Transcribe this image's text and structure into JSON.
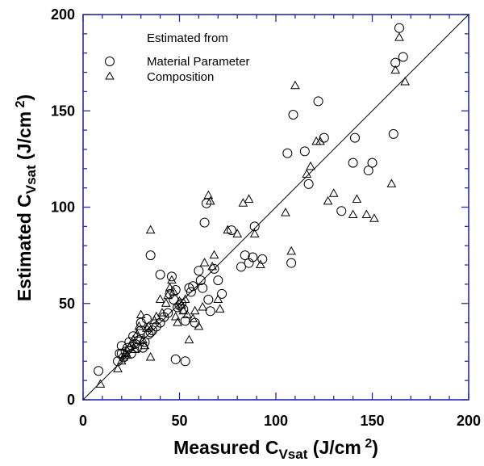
{
  "chart_data": {
    "type": "scatter",
    "xlabel": {
      "main": "Measured  C",
      "sub": "Vsat",
      "unit": "  (J/cm",
      "sup": " 2",
      "close": ")"
    },
    "ylabel": {
      "main": "Estimated  C",
      "sub": "Vsat",
      "unit": "  (J/cm",
      "sup": " 2",
      "close": ")"
    },
    "xlim": [
      0,
      200
    ],
    "ylim": [
      0,
      200
    ],
    "x_ticks": [
      "0",
      "50",
      "100",
      "150",
      "200"
    ],
    "y_ticks": [
      "0",
      "50",
      "100",
      "150",
      "200"
    ],
    "grid": false,
    "reference_line": {
      "from": [
        0,
        0
      ],
      "to": [
        200,
        200
      ]
    },
    "legend": {
      "placement": "top-left",
      "title": "Estimated from",
      "entries": [
        "Material Parameter",
        "Composition"
      ]
    },
    "series": [
      {
        "name": "Material Parameter",
        "marker": "circle",
        "points": [
          [
            8,
            15
          ],
          [
            18,
            20
          ],
          [
            19,
            24
          ],
          [
            20,
            24
          ],
          [
            20,
            28
          ],
          [
            21,
            22
          ],
          [
            22,
            25
          ],
          [
            23,
            27
          ],
          [
            24,
            30
          ],
          [
            25,
            24
          ],
          [
            26,
            33
          ],
          [
            27,
            29
          ],
          [
            28,
            27
          ],
          [
            29,
            31
          ],
          [
            30,
            36
          ],
          [
            30,
            40
          ],
          [
            31,
            27
          ],
          [
            32,
            30
          ],
          [
            33,
            42
          ],
          [
            34,
            34
          ],
          [
            35,
            35
          ],
          [
            36,
            36
          ],
          [
            38,
            38
          ],
          [
            40,
            40
          ],
          [
            40,
            65
          ],
          [
            42,
            43
          ],
          [
            44,
            45
          ],
          [
            45,
            55
          ],
          [
            46,
            64
          ],
          [
            47,
            52
          ],
          [
            48,
            57
          ],
          [
            49,
            48
          ],
          [
            50,
            49
          ],
          [
            51,
            50
          ],
          [
            52,
            47
          ],
          [
            53,
            41
          ],
          [
            55,
            58
          ],
          [
            56,
            56
          ],
          [
            57,
            59
          ],
          [
            58,
            40
          ],
          [
            60,
            67
          ],
          [
            61,
            62
          ],
          [
            62,
            58
          ],
          [
            63,
            92
          ],
          [
            64,
            102
          ],
          [
            65,
            52
          ],
          [
            66,
            46
          ],
          [
            68,
            68
          ],
          [
            70,
            62
          ],
          [
            72,
            55
          ],
          [
            77,
            88
          ],
          [
            82,
            69
          ],
          [
            84,
            75
          ],
          [
            86,
            71
          ],
          [
            88,
            74
          ],
          [
            89,
            90
          ],
          [
            93,
            73
          ],
          [
            108,
            71
          ],
          [
            106,
            128
          ],
          [
            109,
            148
          ],
          [
            115,
            129
          ],
          [
            117,
            112
          ],
          [
            122,
            155
          ],
          [
            125,
            136
          ],
          [
            134,
            98
          ],
          [
            140,
            123
          ],
          [
            141,
            136
          ],
          [
            148,
            119
          ],
          [
            150,
            123
          ],
          [
            161,
            138
          ],
          [
            162,
            175
          ],
          [
            164,
            193
          ],
          [
            166,
            178
          ],
          [
            35,
            75
          ],
          [
            48,
            21
          ],
          [
            53,
            20
          ]
        ]
      },
      {
        "name": "Composition",
        "marker": "triangle",
        "points": [
          [
            9,
            8
          ],
          [
            18,
            16
          ],
          [
            20,
            20
          ],
          [
            21,
            22
          ],
          [
            22,
            24
          ],
          [
            23,
            23
          ],
          [
            24,
            27
          ],
          [
            25,
            29
          ],
          [
            26,
            31
          ],
          [
            27,
            26
          ],
          [
            28,
            34
          ],
          [
            29,
            38
          ],
          [
            30,
            44
          ],
          [
            31,
            31
          ],
          [
            32,
            28
          ],
          [
            33,
            37
          ],
          [
            34,
            38
          ],
          [
            35,
            22
          ],
          [
            35,
            88
          ],
          [
            37,
            41
          ],
          [
            38,
            43
          ],
          [
            40,
            52
          ],
          [
            41,
            45
          ],
          [
            43,
            50
          ],
          [
            44,
            54
          ],
          [
            45,
            58
          ],
          [
            46,
            62
          ],
          [
            47,
            56
          ],
          [
            48,
            43
          ],
          [
            49,
            40
          ],
          [
            50,
            51
          ],
          [
            51,
            49
          ],
          [
            52,
            46
          ],
          [
            53,
            52
          ],
          [
            54,
            44
          ],
          [
            55,
            31
          ],
          [
            57,
            42
          ],
          [
            58,
            46
          ],
          [
            60,
            38
          ],
          [
            62,
            48
          ],
          [
            63,
            71
          ],
          [
            65,
            106
          ],
          [
            66,
            103
          ],
          [
            67,
            69
          ],
          [
            68,
            75
          ],
          [
            70,
            52
          ],
          [
            71,
            47
          ],
          [
            75,
            88
          ],
          [
            80,
            86
          ],
          [
            83,
            102
          ],
          [
            86,
            104
          ],
          [
            89,
            86
          ],
          [
            92,
            70
          ],
          [
            105,
            97
          ],
          [
            108,
            77
          ],
          [
            110,
            163
          ],
          [
            116,
            117
          ],
          [
            118,
            121
          ],
          [
            121,
            134
          ],
          [
            123,
            134
          ],
          [
            127,
            103
          ],
          [
            130,
            107
          ],
          [
            140,
            96
          ],
          [
            142,
            104
          ],
          [
            147,
            96
          ],
          [
            151,
            94
          ],
          [
            160,
            112
          ],
          [
            162,
            171
          ],
          [
            164,
            188
          ],
          [
            167,
            165
          ]
        ]
      }
    ]
  }
}
